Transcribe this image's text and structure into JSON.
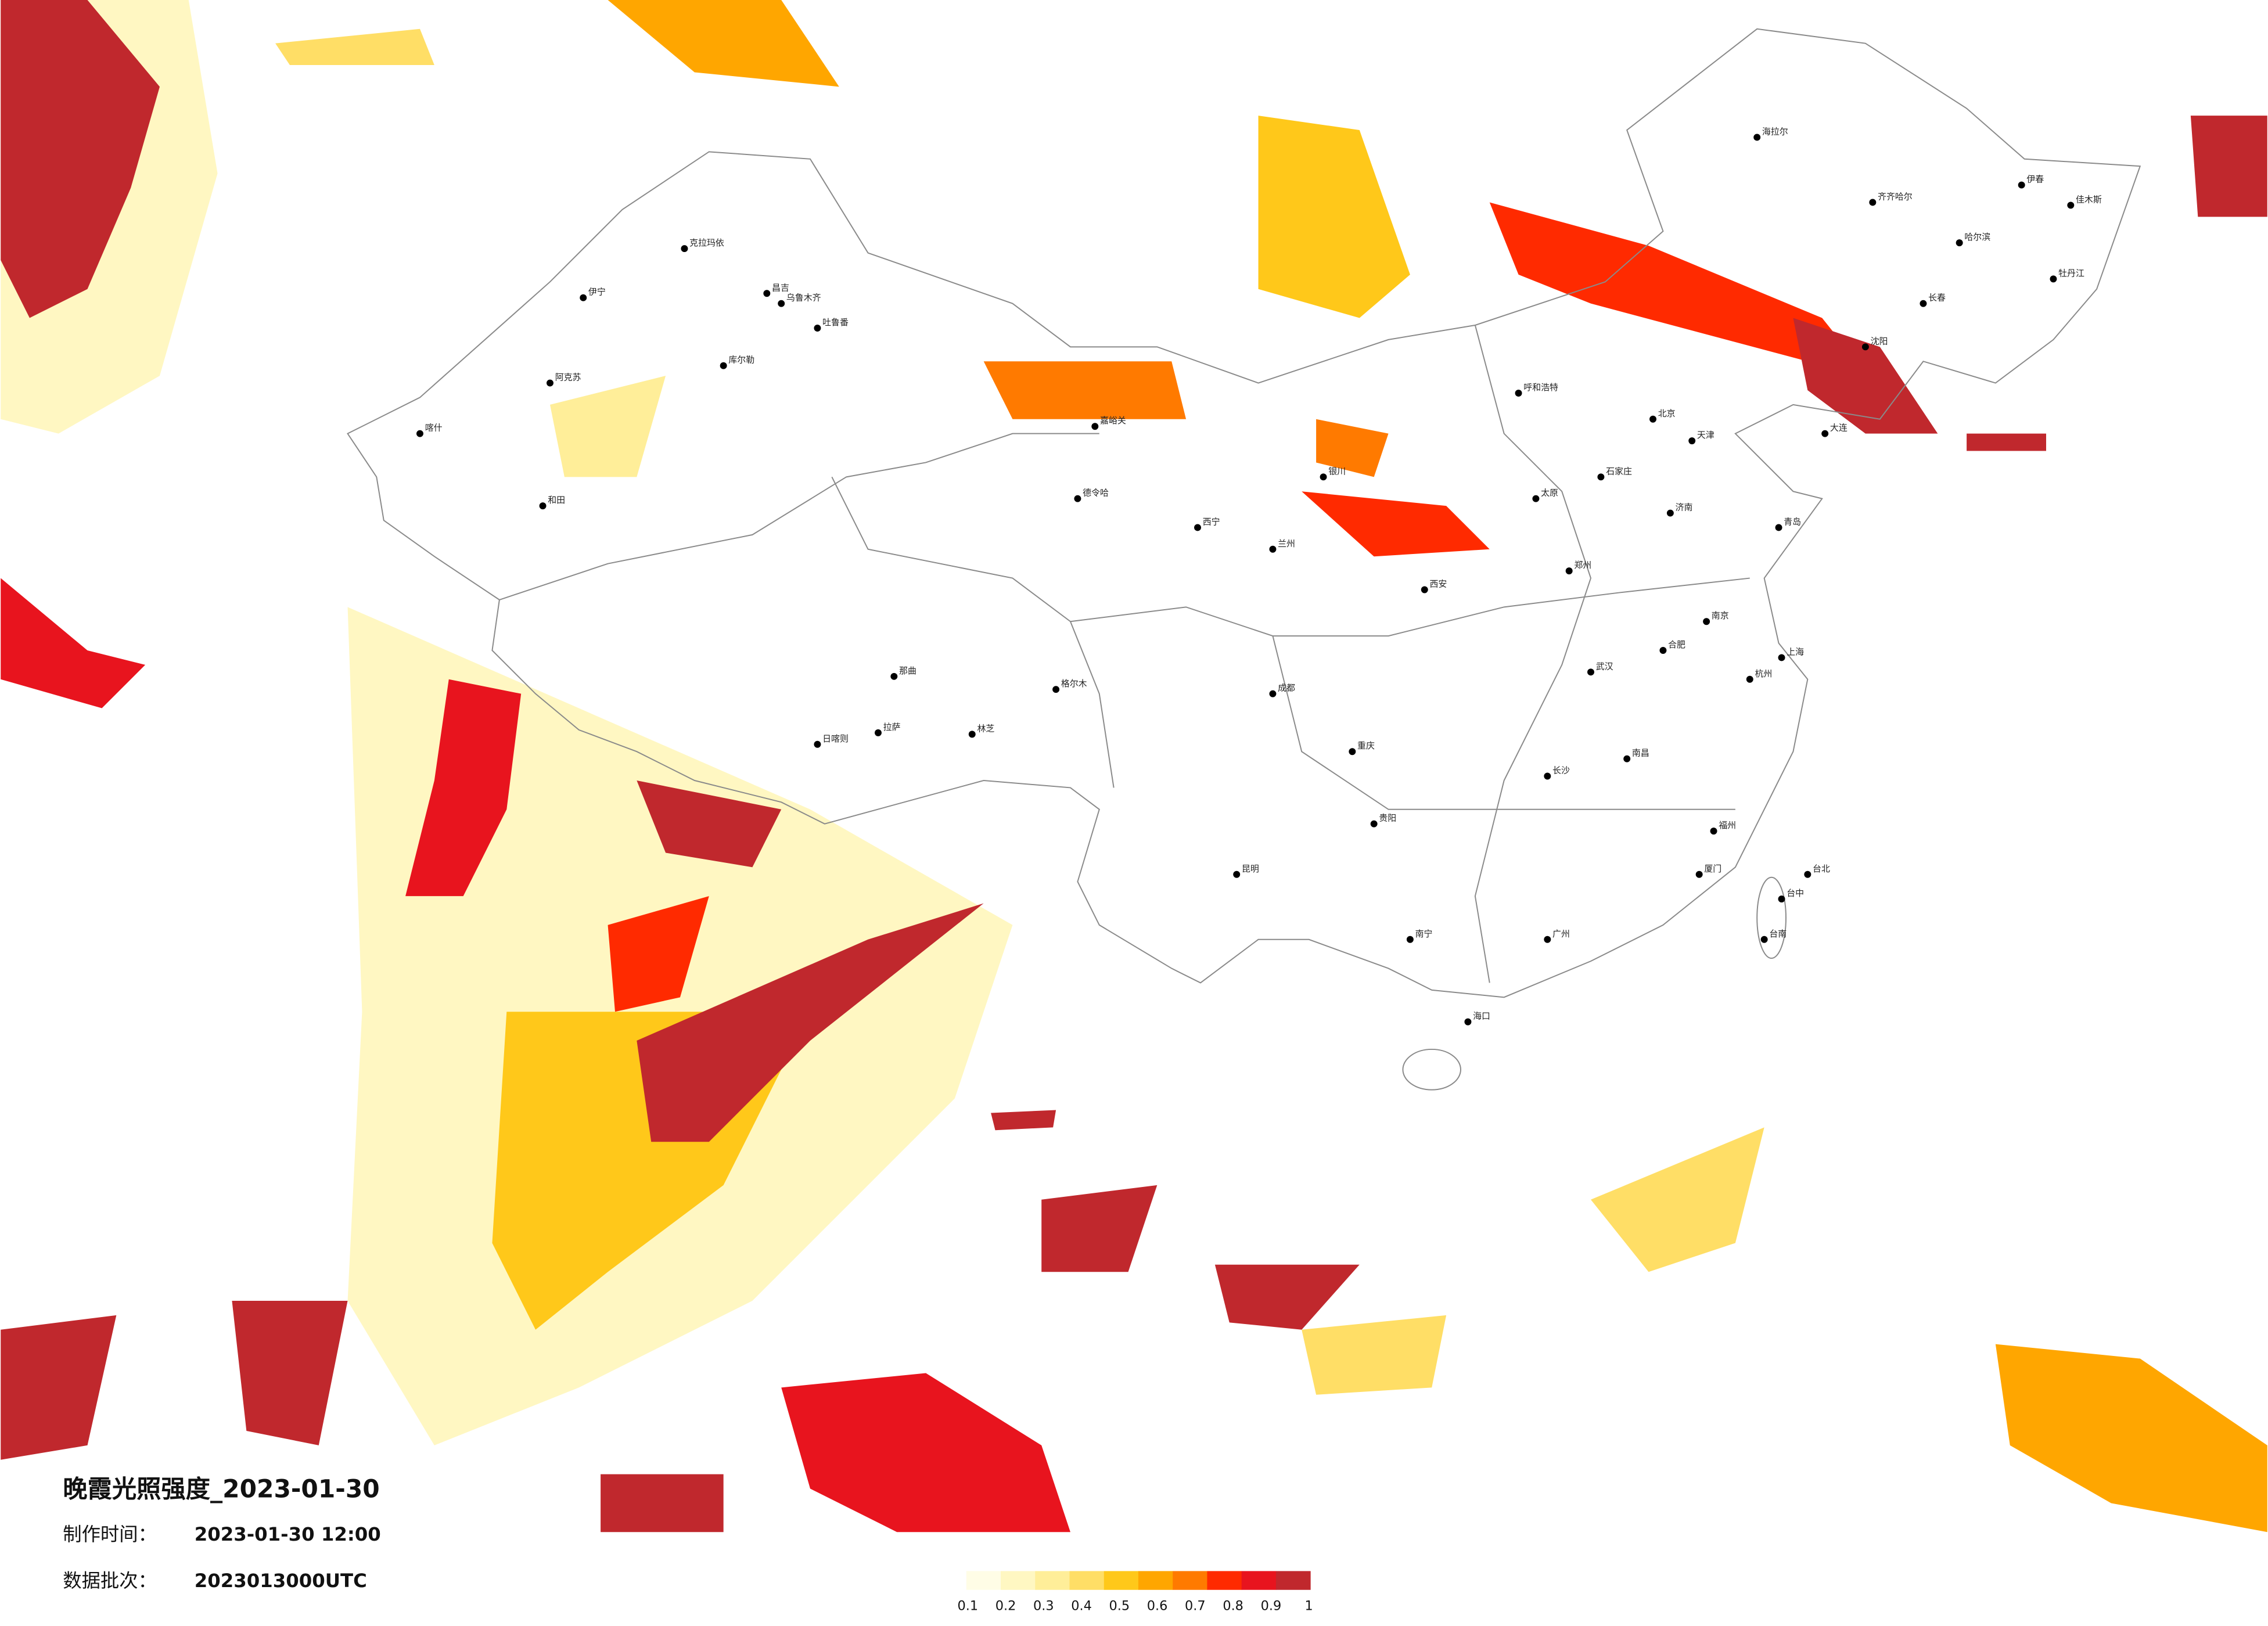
{
  "map": {
    "title": "晚霞光照强度_2023-01-30",
    "made_label": "制作时间：",
    "made_time": "2023-01-30 12:00",
    "batch_label": "数据批次：",
    "batch": "2023013000UTC"
  },
  "legend": {
    "colors": [
      "#fffde6",
      "#fff7c2",
      "#ffee99",
      "#ffde66",
      "#ffc81a",
      "#ffa600",
      "#ff7a00",
      "#ff2a00",
      "#e8141e",
      "#c0282d"
    ],
    "ticks": [
      0.1,
      0.2,
      0.3,
      0.4,
      0.5,
      0.6,
      0.7,
      0.8,
      0.9,
      1
    ]
  },
  "cities": [
    "克拉玛依",
    "昌吉",
    "乌鲁木齐",
    "吐鲁番",
    "库尔勒",
    "伊宁",
    "阿克苏",
    "喀什",
    "和田",
    "德令哈",
    "格尔木",
    "那曲",
    "拉萨",
    "日喀则",
    "林芝",
    "嘉峪关",
    "海拉尔",
    "齐齐哈尔",
    "哈尔滨",
    "牡丹江",
    "伊春",
    "佳木斯",
    "长春",
    "沈阳",
    "北京",
    "天津",
    "石家庄",
    "太原",
    "呼和浩特",
    "济南",
    "郑州",
    "西安",
    "兰州",
    "西宁",
    "银川",
    "成都",
    "重庆",
    "贵阳",
    "昆明",
    "南宁",
    "广州",
    "福州",
    "南昌",
    "长沙",
    "武汉",
    "合肥",
    "南京",
    "杭州",
    "上海",
    "海口",
    "台北",
    "台中",
    "台南",
    "青岛",
    "大连",
    "厦门"
  ]
}
